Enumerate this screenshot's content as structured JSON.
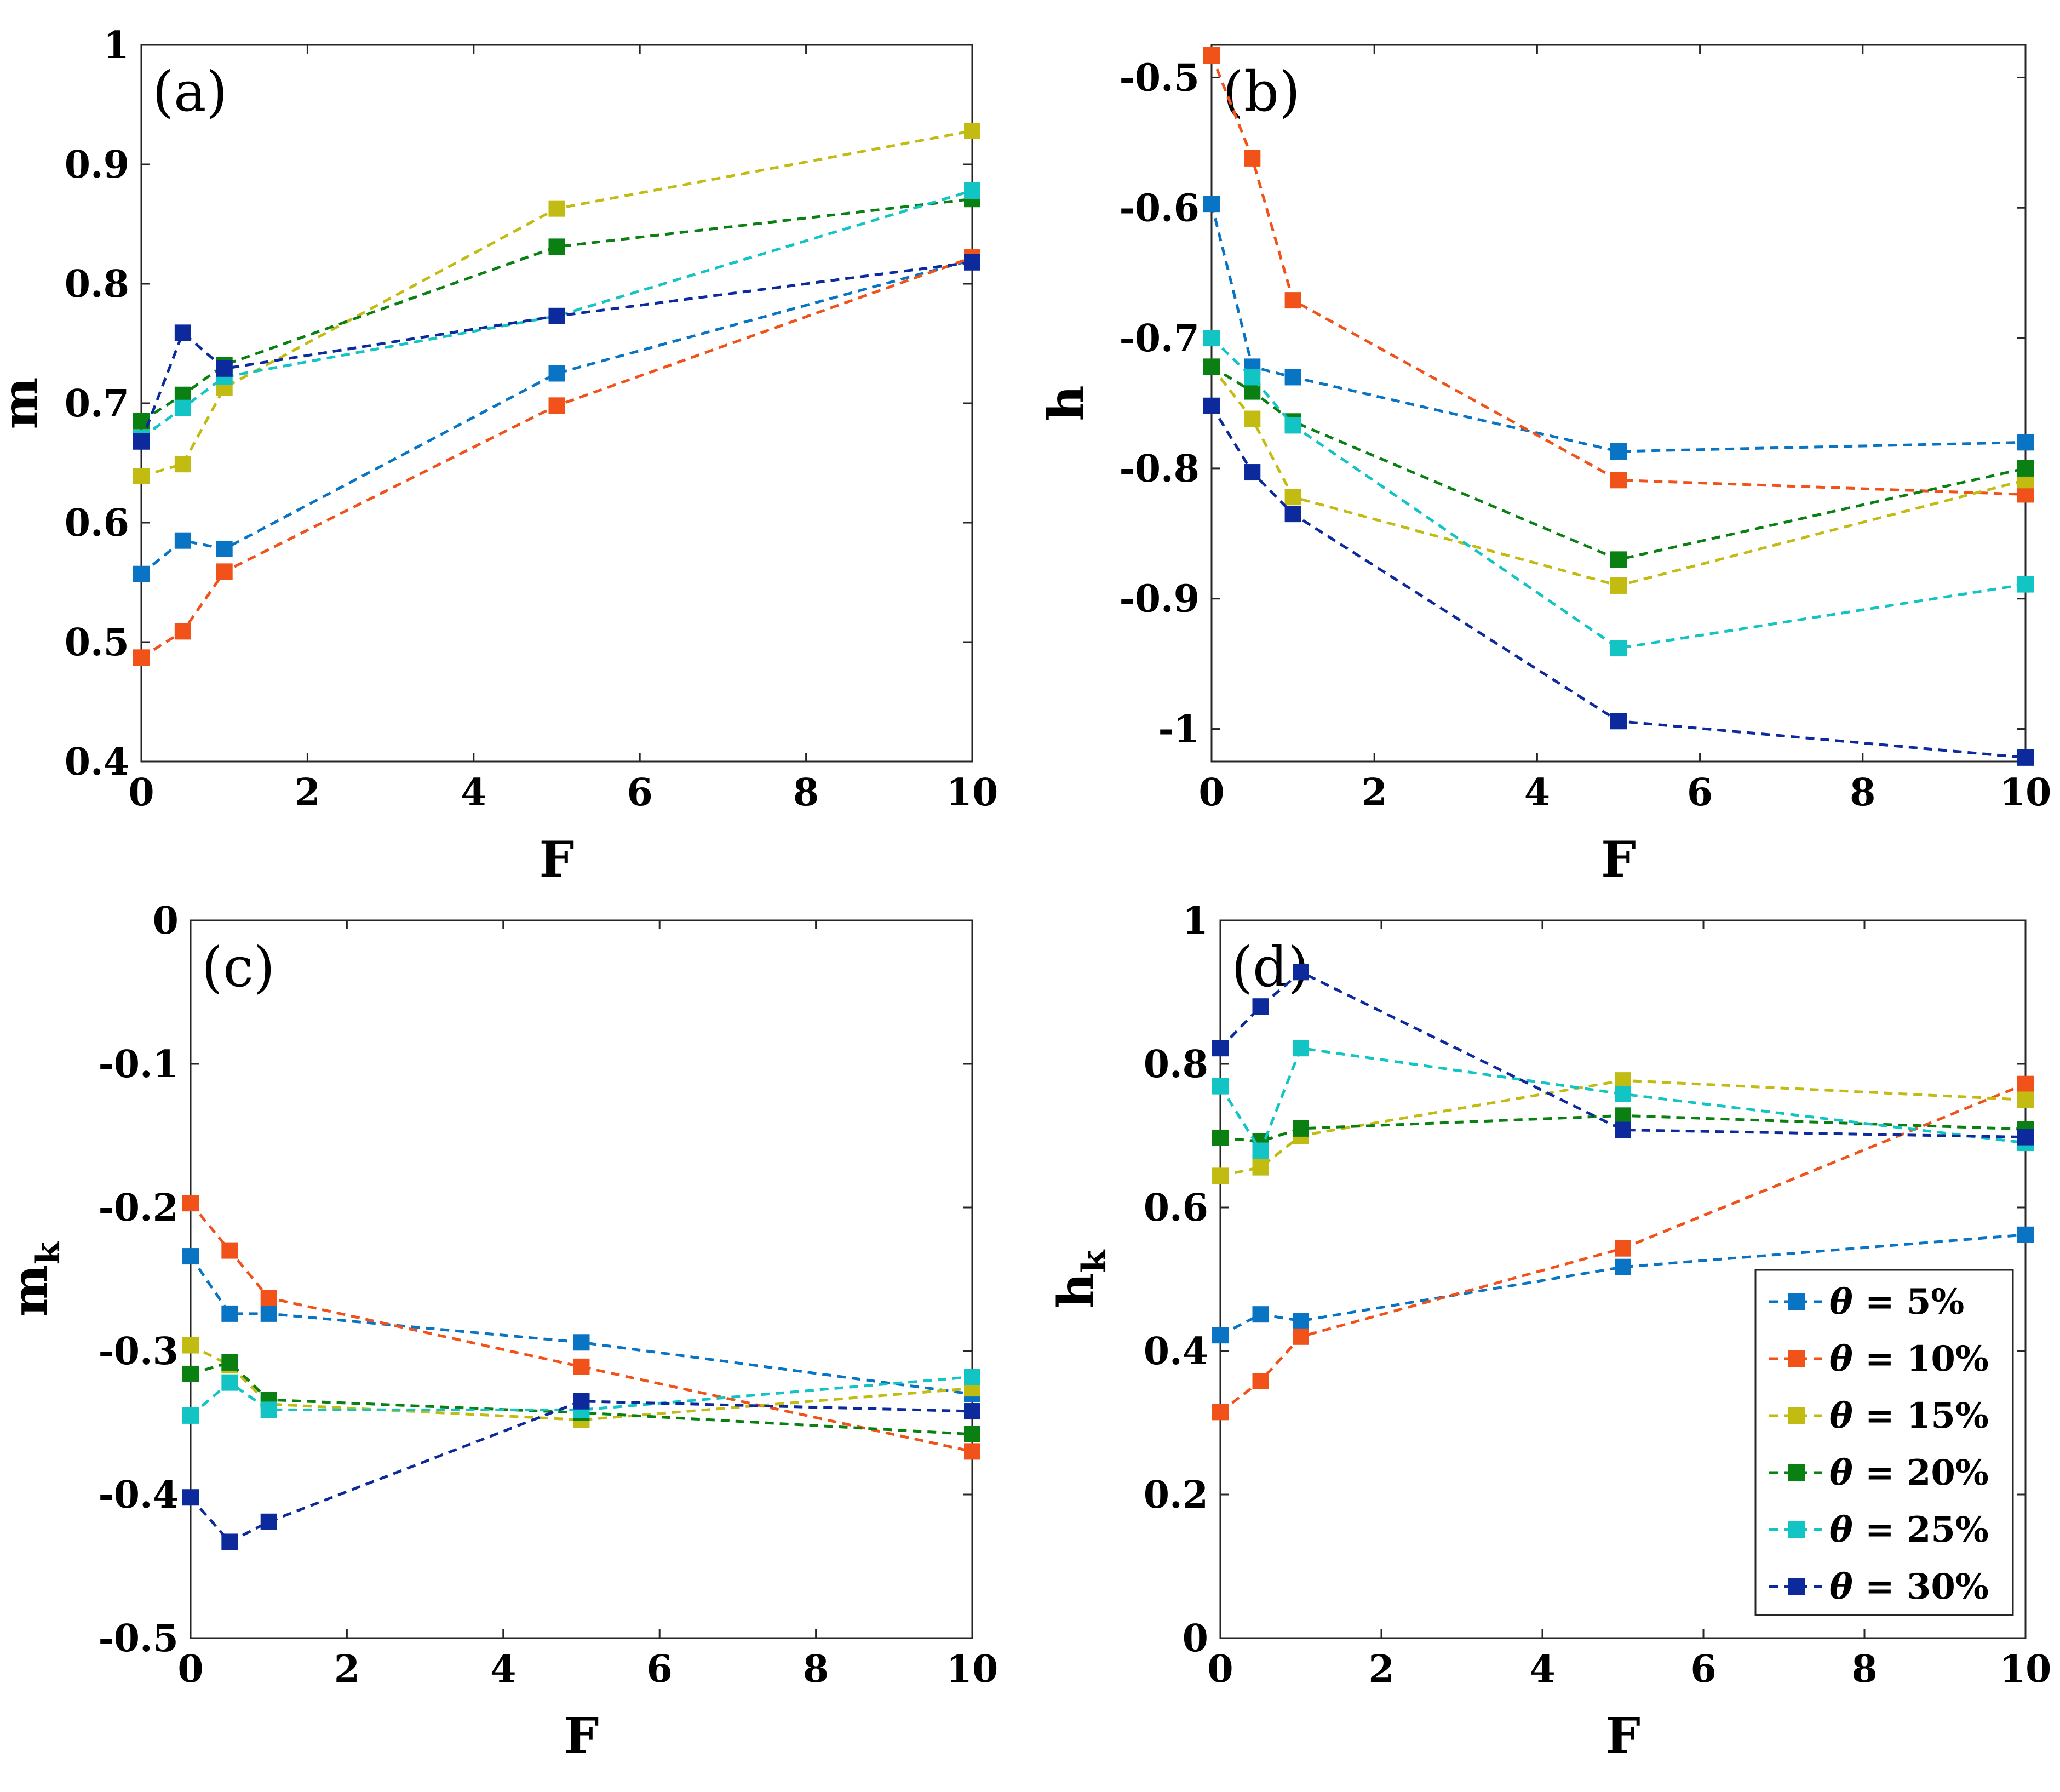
{
  "series_styles": [
    {
      "color": "#0A74C4"
    },
    {
      "color": "#F0521A"
    },
    {
      "color": "#C2BC12"
    },
    {
      "color": "#0A7F12"
    },
    {
      "color": "#12C4C4"
    },
    {
      "color": "#0C2A9C"
    }
  ],
  "legend": {
    "placement": "lower-right of panel (d)",
    "entries": [
      {
        "symbol": "θ",
        "text": " = 5%"
      },
      {
        "symbol": "θ",
        "text": " = 10%"
      },
      {
        "symbol": "θ",
        "text": " = 15%"
      },
      {
        "symbol": "θ",
        "text": " = 20%"
      },
      {
        "symbol": "θ",
        "text": " = 25%"
      },
      {
        "symbol": "θ",
        "text": " = 30%"
      }
    ]
  },
  "chart_data": [
    {
      "type": "line",
      "panel_label": "(a)",
      "xlabel": "F",
      "ylabel": "m",
      "ylabel_sub": "",
      "xlim": [
        0,
        10
      ],
      "ylim": [
        0.4,
        1
      ],
      "xticks": [
        0,
        2,
        4,
        6,
        8,
        10
      ],
      "xtick_labels": [
        "0",
        "2",
        "4",
        "6",
        "8",
        "10"
      ],
      "yticks": [
        0.4,
        0.5,
        0.6,
        0.7,
        0.8,
        0.9,
        1
      ],
      "ytick_labels": [
        "0.4",
        "0.5",
        "0.6",
        "0.7",
        "0.8",
        "0.9",
        "1"
      ],
      "x": [
        0,
        0.5,
        1,
        5,
        10
      ],
      "series": [
        {
          "values": [
            0.557,
            0.585,
            0.578,
            0.725,
            0.82
          ]
        },
        {
          "values": [
            0.487,
            0.509,
            0.559,
            0.698,
            0.822
          ]
        },
        {
          "values": [
            0.639,
            0.649,
            0.713,
            0.863,
            0.928
          ]
        },
        {
          "values": [
            0.685,
            0.707,
            0.732,
            0.831,
            0.871
          ]
        },
        {
          "values": [
            0.671,
            0.696,
            0.722,
            0.773,
            0.878
          ]
        },
        {
          "values": [
            0.668,
            0.759,
            0.729,
            0.773,
            0.818
          ]
        }
      ]
    },
    {
      "type": "line",
      "panel_label": "(b)",
      "xlabel": "F",
      "ylabel": "h",
      "ylabel_sub": "",
      "xlim": [
        0,
        10
      ],
      "ylim": [
        -1.025,
        -0.475
      ],
      "xticks": [
        0,
        2,
        4,
        6,
        8,
        10
      ],
      "xtick_labels": [
        "0",
        "2",
        "4",
        "6",
        "8",
        "10"
      ],
      "yticks": [
        -1,
        -0.9,
        -0.8,
        -0.7,
        -0.6,
        -0.5
      ],
      "ytick_labels": [
        "-1",
        "-0.9",
        "-0.8",
        "-0.7",
        "-0.6",
        "-0.5"
      ],
      "x": [
        0,
        0.5,
        1,
        5,
        10
      ],
      "series": [
        {
          "values": [
            -0.597,
            -0.722,
            -0.73,
            -0.787,
            -0.78
          ]
        },
        {
          "values": [
            -0.483,
            -0.562,
            -0.671,
            -0.809,
            -0.82
          ]
        },
        {
          "values": [
            -0.722,
            -0.762,
            -0.822,
            -0.89,
            -0.809
          ]
        },
        {
          "values": [
            -0.722,
            -0.741,
            -0.764,
            -0.87,
            -0.8
          ]
        },
        {
          "values": [
            -0.7,
            -0.73,
            -0.767,
            -0.938,
            -0.889
          ]
        },
        {
          "values": [
            -0.752,
            -0.803,
            -0.835,
            -0.994,
            -1.022
          ]
        }
      ]
    },
    {
      "type": "line",
      "panel_label": "(c)",
      "xlabel": "F",
      "ylabel": "m",
      "ylabel_sub": "k",
      "xlim": [
        0,
        10
      ],
      "ylim": [
        -0.5,
        0
      ],
      "xticks": [
        0,
        2,
        4,
        6,
        8,
        10
      ],
      "xtick_labels": [
        "0",
        "2",
        "4",
        "6",
        "8",
        "10"
      ],
      "yticks": [
        -0.5,
        -0.4,
        -0.3,
        -0.2,
        -0.1,
        0
      ],
      "ytick_labels": [
        "-0.5",
        "-0.4",
        "-0.3",
        "-0.2",
        "-0.1",
        "0"
      ],
      "x": [
        0,
        0.5,
        1,
        5,
        10
      ],
      "series": [
        {
          "values": [
            -0.234,
            -0.274,
            -0.274,
            -0.294,
            -0.33
          ]
        },
        {
          "values": [
            -0.197,
            -0.23,
            -0.263,
            -0.311,
            -0.37
          ]
        },
        {
          "values": [
            -0.296,
            -0.31,
            -0.337,
            -0.348,
            -0.326
          ]
        },
        {
          "values": [
            -0.316,
            -0.308,
            -0.334,
            -0.343,
            -0.358
          ]
        },
        {
          "values": [
            -0.345,
            -0.322,
            -0.341,
            -0.341,
            -0.318
          ]
        },
        {
          "values": [
            -0.402,
            -0.433,
            -0.419,
            -0.335,
            -0.342
          ]
        }
      ]
    },
    {
      "type": "line",
      "panel_label": "(d)",
      "xlabel": "F",
      "ylabel": "h",
      "ylabel_sub": "k",
      "xlim": [
        0,
        10
      ],
      "ylim": [
        0,
        1
      ],
      "xticks": [
        0,
        2,
        4,
        6,
        8,
        10
      ],
      "xtick_labels": [
        "0",
        "2",
        "4",
        "6",
        "8",
        "10"
      ],
      "yticks": [
        0,
        0.2,
        0.4,
        0.6,
        0.8,
        1
      ],
      "ytick_labels": [
        "0",
        "0.2",
        "0.4",
        "0.6",
        "0.8",
        "1"
      ],
      "x": [
        0,
        0.5,
        1,
        5,
        10
      ],
      "series": [
        {
          "values": [
            0.422,
            0.451,
            0.442,
            0.517,
            0.562
          ]
        },
        {
          "values": [
            0.315,
            0.358,
            0.42,
            0.543,
            0.772
          ]
        },
        {
          "values": [
            0.644,
            0.656,
            0.7,
            0.777,
            0.75
          ]
        },
        {
          "values": [
            0.697,
            0.692,
            0.71,
            0.728,
            0.709
          ]
        },
        {
          "values": [
            0.769,
            0.679,
            0.822,
            0.758,
            0.69
          ]
        },
        {
          "values": [
            0.822,
            0.88,
            0.928,
            0.708,
            0.698
          ]
        }
      ]
    }
  ]
}
